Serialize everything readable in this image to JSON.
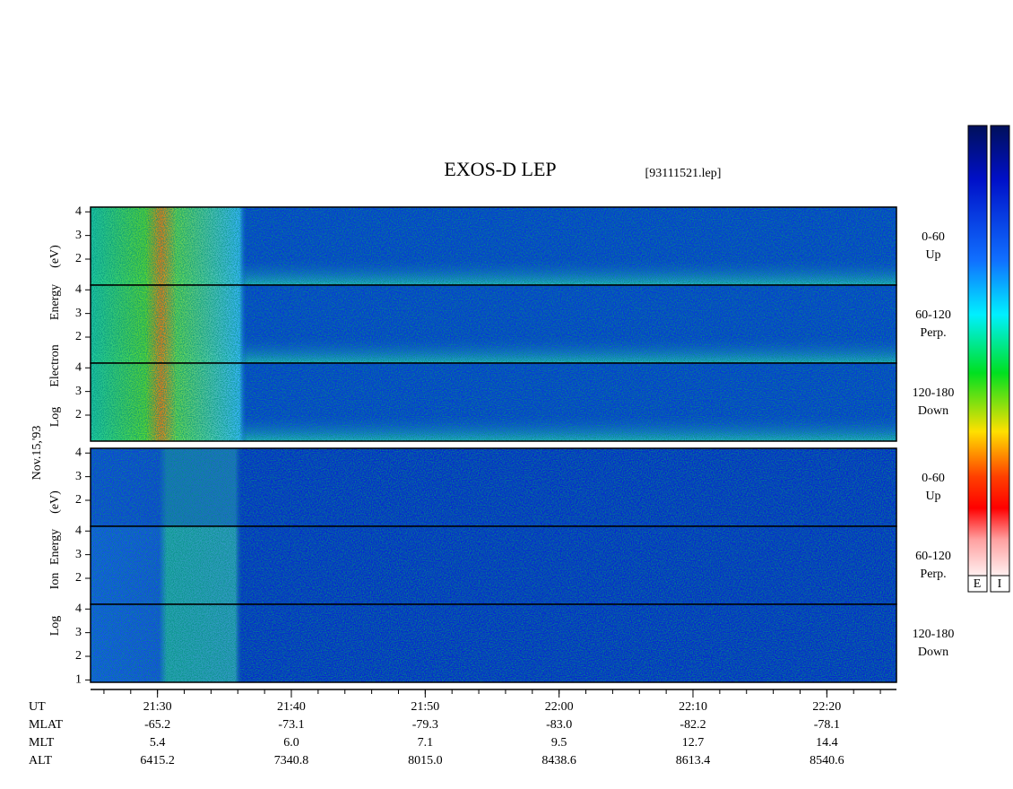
{
  "title": "EXOS-D LEP",
  "file": "[93111521.lep]",
  "date": "Nov.15,'93",
  "electron_axis_label": [
    "Log",
    "Electron",
    "Energy",
    "(eV)"
  ],
  "ion_axis_label": [
    "Log",
    "Ion",
    "Energy",
    "(eV)"
  ],
  "ylim": [
    0.9,
    4.2
  ],
  "panels": [
    {
      "species": "electron",
      "pitch": "0-60",
      "direction": "Up",
      "yticks": [
        2,
        3,
        4
      ]
    },
    {
      "species": "electron",
      "pitch": "60-120",
      "direction": "Perp.",
      "yticks": [
        2,
        3,
        4
      ]
    },
    {
      "species": "electron",
      "pitch": "120-180",
      "direction": "Down",
      "yticks": [
        2,
        3,
        4
      ]
    },
    {
      "species": "ion",
      "pitch": "0-60",
      "direction": "Up",
      "yticks": [
        2,
        3,
        4
      ]
    },
    {
      "species": "ion",
      "pitch": "60-120",
      "direction": "Perp.",
      "yticks": [
        2,
        3,
        4
      ]
    },
    {
      "species": "ion",
      "pitch": "120-180",
      "direction": "Down",
      "yticks": [
        1,
        2,
        3,
        4
      ]
    }
  ],
  "time_axis": {
    "xlim": [
      1285,
      1345.2
    ],
    "minor_step": 2,
    "xticks": [
      {
        "value": 1290,
        "label": "21:30"
      },
      {
        "value": 1300,
        "label": "21:40"
      },
      {
        "value": 1310,
        "label": "21:50"
      },
      {
        "value": 1320,
        "label": "22:00"
      },
      {
        "value": 1330,
        "label": "22:10"
      },
      {
        "value": 1340,
        "label": "22:20"
      }
    ]
  },
  "rows": [
    {
      "name": "UT"
    },
    {
      "name": "MLAT",
      "values": [
        "-65.2",
        "-73.1",
        "-79.3",
        "-83.0",
        "-82.2",
        "-78.1"
      ]
    },
    {
      "name": "MLT",
      "values": [
        "5.4",
        "6.0",
        "7.1",
        "9.5",
        "12.7",
        "14.4"
      ]
    },
    {
      "name": "ALT",
      "values": [
        "6415.2",
        "7340.8",
        "8015.0",
        "8438.6",
        "8613.4",
        "8540.6"
      ]
    }
  ],
  "colorbar_labels": [
    "E",
    "I"
  ]
}
